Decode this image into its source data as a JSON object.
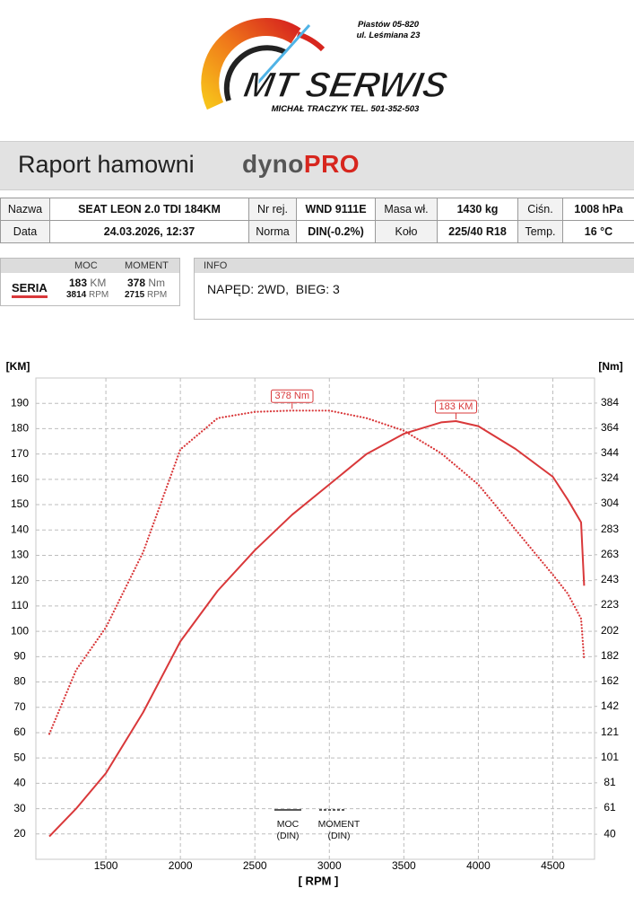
{
  "header": {
    "address_line1": "Piastów 05-820",
    "address_line2": "ul. Leśmiana 23",
    "logo_text": "MT SERWIS",
    "contact": "MICHAŁ TRACZYK TEL. 501-352-503"
  },
  "report": {
    "title": "Raport hamowni",
    "brand": "dyno",
    "brand_accent": "PRO"
  },
  "table": {
    "rows": [
      [
        "Nazwa",
        "SEAT LEON 2.0 TDI 184KM",
        "Nr rej.",
        "WND 9111E",
        "Masa wł.",
        "1430 kg",
        "Ciśn.",
        "1008 hPa"
      ],
      [
        "Data",
        "24.03.2026, 12:37",
        "Norma",
        "DIN(-0.2%)",
        "Koło",
        "225/40 R18",
        "Temp.",
        "16 °C"
      ]
    ]
  },
  "summary": {
    "label": "SERIA",
    "power_header": "MOC",
    "torque_header": "MOMENT",
    "power": "183",
    "power_unit": "KM",
    "torque": "378",
    "torque_unit": "Nm",
    "power_rpm": "3814",
    "torque_rpm": "2715",
    "rpm_unit": "RPM"
  },
  "info": {
    "title": "INFO",
    "text": "NAPĘD: 2WD,  BIEG: 3"
  },
  "chart_data": {
    "type": "line",
    "x_label": "[ RPM ]",
    "y_label": "[KM]",
    "y2_label": "[Nm]",
    "x": [
      1120,
      1300,
      1500,
      1750,
      2000,
      2250,
      2500,
      2750,
      3000,
      3250,
      3500,
      3750,
      3850,
      4000,
      4250,
      4500,
      4600,
      4690,
      4710
    ],
    "series": [
      {
        "name": "MOC (DIN)",
        "color": "#d9383a",
        "line_style": "solid",
        "axis": "y",
        "values": [
          19,
          30,
          44,
          68,
          96,
          116,
          132,
          146,
          158,
          170,
          178,
          182.5,
          183,
          181,
          172,
          161,
          152,
          143,
          118
        ]
      },
      {
        "name": "MOMENT (DIN)",
        "color": "#d9383a",
        "line_style": "dotted",
        "axis": "y2",
        "values": [
          120,
          171,
          205,
          265,
          347,
          372,
          377,
          378,
          378,
          372,
          362,
          344,
          334,
          319,
          283,
          247,
          232,
          212,
          179
        ]
      }
    ],
    "annotations": [
      "183 KM",
      "378 Nm"
    ],
    "xlim": [
      1030,
      4780
    ],
    "ylim": [
      10,
      200
    ],
    "y2lim": [
      20,
      404
    ],
    "xticks": [
      1500,
      2000,
      2500,
      3000,
      3500,
      4000,
      4500
    ],
    "yticks": [
      20,
      30,
      40,
      50,
      60,
      70,
      80,
      90,
      100,
      110,
      120,
      130,
      140,
      150,
      160,
      170,
      180,
      190
    ],
    "y2ticks": [
      40,
      61,
      81,
      101,
      121,
      142,
      162,
      182,
      202,
      223,
      243,
      263,
      283,
      304,
      324,
      344,
      364,
      384
    ],
    "grid": true
  }
}
